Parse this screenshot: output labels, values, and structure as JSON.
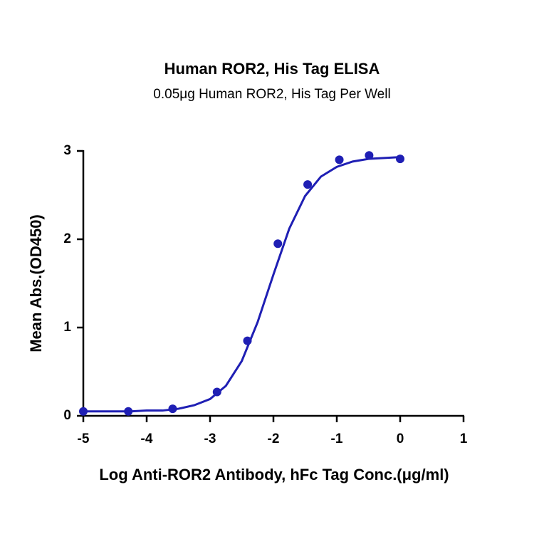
{
  "chart_data": {
    "type": "scatter",
    "title": "Human ROR2, His Tag ELISA",
    "subtitle": "0.05μg Human ROR2, His Tag Per Well",
    "x_label": "Log Anti-ROR2 Antibody, hFc Tag Conc.(μg/ml)",
    "y_label": "Mean Abs.(OD450)",
    "xlim": [
      -5,
      1
    ],
    "xticks": [
      -5,
      -4,
      -3,
      -2,
      -1,
      0,
      1
    ],
    "ylim": [
      0,
      3
    ],
    "yticks": [
      0,
      1,
      2,
      3
    ],
    "series": [
      {
        "type": "scatter",
        "color": "#1f1fb4",
        "x": [
          -5,
          -4.29,
          -3.59,
          -2.89,
          -2.41,
          -1.93,
          -1.46,
          -0.96,
          -0.49,
          0
        ],
        "values": [
          0.05,
          0.05,
          0.08,
          0.27,
          0.85,
          1.95,
          2.62,
          2.9,
          2.95,
          2.91
        ]
      },
      {
        "type": "line",
        "color": "#1f1fb4",
        "x": [
          -5,
          -4.75,
          -4.5,
          -4.25,
          -4,
          -3.75,
          -3.5,
          -3.25,
          -3,
          -2.75,
          -2.5,
          -2.25,
          -2,
          -1.75,
          -1.5,
          -1.25,
          -1,
          -0.75,
          -0.5,
          -0.25,
          0
        ],
        "values": [
          0.05,
          0.05,
          0.05,
          0.05,
          0.06,
          0.06,
          0.08,
          0.12,
          0.19,
          0.34,
          0.62,
          1.06,
          1.6,
          2.12,
          2.49,
          2.71,
          2.82,
          2.88,
          2.91,
          2.92,
          2.93
        ]
      }
    ]
  }
}
